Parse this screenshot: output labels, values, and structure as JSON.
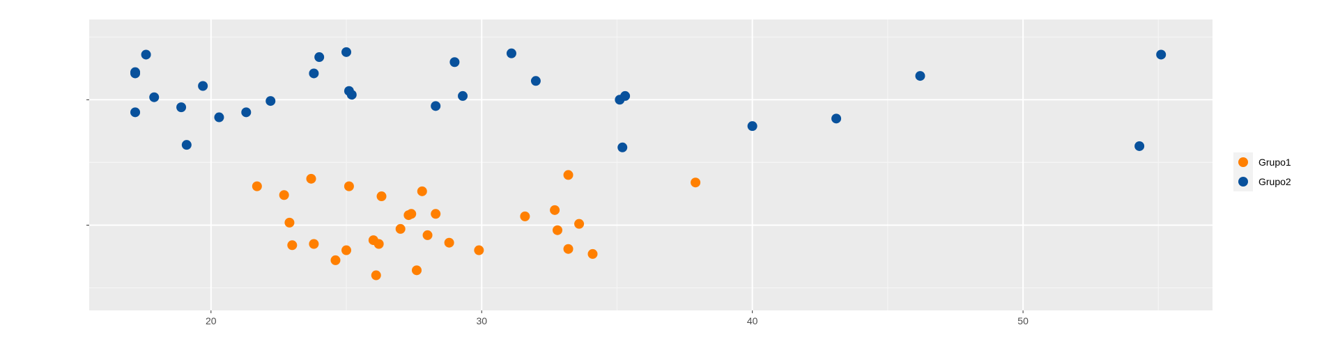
{
  "chart_data": {
    "type": "scatter",
    "title": "",
    "xlabel": "",
    "ylabel": "",
    "xlim": [
      15.5,
      57.0
    ],
    "ylim": [
      0.32,
      2.64
    ],
    "x_ticks": [
      20,
      30,
      40,
      50
    ],
    "y_ticks": [
      1,
      2
    ],
    "grid": true,
    "legend_position": "right",
    "series": [
      {
        "name": "Grupo1",
        "color": "#FF7F00",
        "points": [
          {
            "x": 21.7,
            "y": 1.31
          },
          {
            "x": 22.7,
            "y": 1.24
          },
          {
            "x": 23.7,
            "y": 1.37
          },
          {
            "x": 25.1,
            "y": 1.31
          },
          {
            "x": 26.3,
            "y": 1.23
          },
          {
            "x": 27.8,
            "y": 1.27
          },
          {
            "x": 33.2,
            "y": 1.4
          },
          {
            "x": 37.9,
            "y": 1.34
          },
          {
            "x": 22.9,
            "y": 1.02
          },
          {
            "x": 23.0,
            "y": 0.84
          },
          {
            "x": 23.8,
            "y": 0.85
          },
          {
            "x": 24.6,
            "y": 0.72
          },
          {
            "x": 25.0,
            "y": 0.8
          },
          {
            "x": 26.0,
            "y": 0.88
          },
          {
            "x": 26.2,
            "y": 0.85
          },
          {
            "x": 27.0,
            "y": 0.97
          },
          {
            "x": 27.3,
            "y": 1.08
          },
          {
            "x": 27.4,
            "y": 1.09
          },
          {
            "x": 28.0,
            "y": 0.92
          },
          {
            "x": 28.3,
            "y": 1.09
          },
          {
            "x": 28.8,
            "y": 0.86
          },
          {
            "x": 29.9,
            "y": 0.8
          },
          {
            "x": 26.1,
            "y": 0.6
          },
          {
            "x": 27.6,
            "y": 0.64
          },
          {
            "x": 31.6,
            "y": 1.07
          },
          {
            "x": 32.7,
            "y": 1.12
          },
          {
            "x": 32.8,
            "y": 0.96
          },
          {
            "x": 33.2,
            "y": 0.81
          },
          {
            "x": 33.6,
            "y": 1.01
          },
          {
            "x": 34.1,
            "y": 0.77
          }
        ]
      },
      {
        "name": "Grupo2",
        "color": "#08519C",
        "points": [
          {
            "x": 17.2,
            "y": 2.21
          },
          {
            "x": 17.2,
            "y": 2.22
          },
          {
            "x": 17.6,
            "y": 2.36
          },
          {
            "x": 17.9,
            "y": 2.02
          },
          {
            "x": 17.2,
            "y": 1.9
          },
          {
            "x": 18.9,
            "y": 1.94
          },
          {
            "x": 19.1,
            "y": 1.64
          },
          {
            "x": 19.7,
            "y": 2.11
          },
          {
            "x": 20.3,
            "y": 1.86
          },
          {
            "x": 21.3,
            "y": 1.9
          },
          {
            "x": 22.2,
            "y": 1.99
          },
          {
            "x": 23.8,
            "y": 2.21
          },
          {
            "x": 24.0,
            "y": 2.34
          },
          {
            "x": 25.0,
            "y": 2.38
          },
          {
            "x": 25.1,
            "y": 2.07
          },
          {
            "x": 25.2,
            "y": 2.04
          },
          {
            "x": 28.3,
            "y": 1.95
          },
          {
            "x": 29.0,
            "y": 2.3
          },
          {
            "x": 29.3,
            "y": 2.03
          },
          {
            "x": 31.1,
            "y": 2.37
          },
          {
            "x": 32.0,
            "y": 2.15
          },
          {
            "x": 35.1,
            "y": 2.0
          },
          {
            "x": 35.3,
            "y": 2.03
          },
          {
            "x": 35.2,
            "y": 1.62
          },
          {
            "x": 40.0,
            "y": 1.79
          },
          {
            "x": 43.1,
            "y": 1.85
          },
          {
            "x": 46.2,
            "y": 2.19
          },
          {
            "x": 54.3,
            "y": 1.63
          },
          {
            "x": 55.1,
            "y": 2.36
          }
        ]
      }
    ]
  }
}
